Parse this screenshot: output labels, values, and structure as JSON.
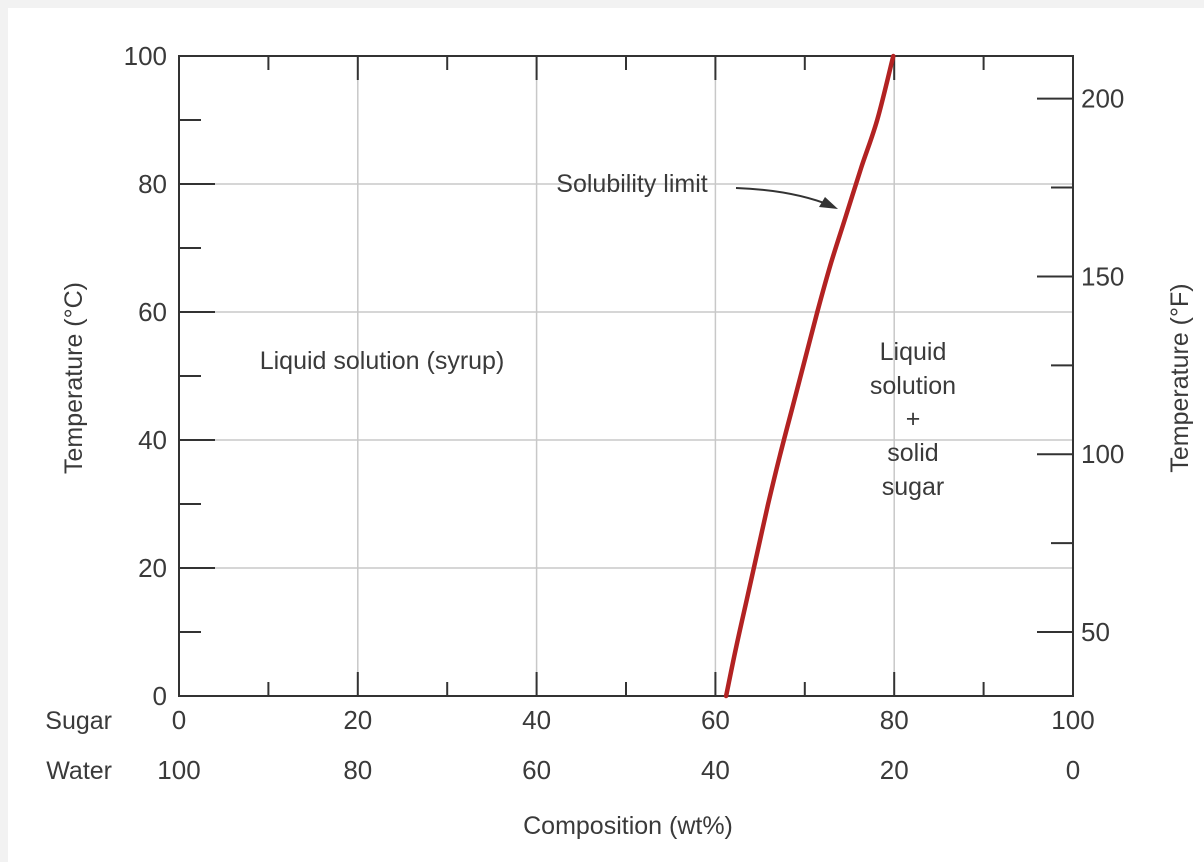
{
  "chart_data": {
    "type": "line",
    "xlabel": "Composition (wt%)",
    "ylabel_left": "Temperature (°C)",
    "ylabel_right": "Temperature (°F)",
    "x_rows": [
      {
        "label": "Sugar",
        "ticks": [
          "0",
          "20",
          "40",
          "60",
          "80",
          "100"
        ]
      },
      {
        "label": "Water",
        "ticks": [
          "100",
          "80",
          "60",
          "40",
          "20",
          "0"
        ]
      }
    ],
    "xlim": [
      0,
      100
    ],
    "ylim": [
      0,
      100
    ],
    "y_ticks_left": [
      "0",
      "20",
      "40",
      "60",
      "80",
      "100"
    ],
    "y_ticks_right": [
      "50",
      "100",
      "150",
      "200"
    ],
    "grid": true,
    "series": [
      {
        "color": "#b22222",
        "x": [
          61.2,
          62.3,
          63.5,
          64.7,
          65.9,
          67.2,
          68.6,
          70.0,
          71.4,
          72.9,
          74.6,
          76.3,
          78.1,
          79.9
        ],
        "y": [
          0,
          7.5,
          15,
          22.5,
          30,
          37.5,
          45,
          52.5,
          60,
          67.5,
          75,
          82.5,
          90,
          100
        ]
      }
    ],
    "annotations": {
      "solubility_label": "Solubility limit",
      "region_left": "Liquid solution (syrup)",
      "region_right_lines": [
        "Liquid",
        "solution",
        "+",
        "solid",
        "sugar"
      ]
    }
  }
}
